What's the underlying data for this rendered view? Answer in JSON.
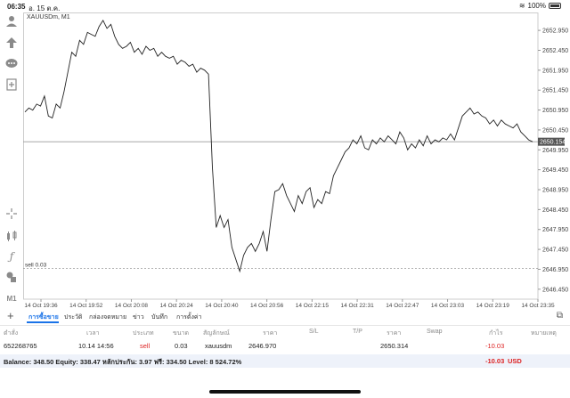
{
  "status_bar": {
    "time": "06:35",
    "date": "อ. 15 ต.ค.",
    "battery": "100%"
  },
  "toolbar_icons": [
    "person-icon",
    "up-arrow-icon",
    "chat-icon",
    "add-page-icon",
    "crosshair-icon",
    "candles-icon",
    "function-icon",
    "objects-icon",
    "timeframe-label"
  ],
  "timeframe": "M1",
  "chart": {
    "symbol_label": "XAUUSDm, M1",
    "current_price": "2650.154",
    "order_label": "sell 0.03",
    "price_ticks": [
      "2652.950",
      "2652.450",
      "2651.950",
      "2651.450",
      "2650.950",
      "2650.450",
      "2649.950",
      "2649.450",
      "2648.950",
      "2648.450",
      "2647.950",
      "2647.450",
      "2646.950",
      "2646.450"
    ],
    "time_ticks": [
      "14 Oct 19:36",
      "14 Oct 19:52",
      "14 Oct 20:08",
      "14 Oct 20:24",
      "14 Oct 20:40",
      "14 Oct 20:56",
      "14 Oct 22:15",
      "14 Oct 22:31",
      "14 Oct 22:47",
      "14 Oct 23:03",
      "14 Oct 23:19",
      "14 Oct 23:35"
    ]
  },
  "chart_data": {
    "type": "line",
    "title": "XAUUSDm, M1",
    "ylim": [
      2646.2,
      2653.4
    ],
    "current_price": 2650.154,
    "order_line": 2646.97,
    "values": [
      2650.9,
      2651.0,
      2650.95,
      2651.1,
      2651.05,
      2651.3,
      2650.8,
      2650.75,
      2651.1,
      2651.0,
      2651.4,
      2651.9,
      2652.4,
      2652.3,
      2652.7,
      2652.6,
      2652.9,
      2652.85,
      2652.8,
      2653.05,
      2653.2,
      2653.0,
      2653.1,
      2652.8,
      2652.6,
      2652.5,
      2652.55,
      2652.65,
      2652.4,
      2652.5,
      2652.35,
      2652.55,
      2652.45,
      2652.5,
      2652.3,
      2652.4,
      2652.3,
      2652.25,
      2652.3,
      2652.1,
      2652.2,
      2652.15,
      2652.05,
      2652.1,
      2651.9,
      2652.0,
      2651.95,
      2651.85,
      2649.5,
      2648.0,
      2648.3,
      2648.0,
      2648.2,
      2647.5,
      2647.2,
      2646.9,
      2647.3,
      2647.5,
      2647.6,
      2647.4,
      2647.6,
      2647.9,
      2647.4,
      2648.2,
      2648.9,
      2648.95,
      2649.1,
      2648.8,
      2648.6,
      2648.4,
      2648.8,
      2648.6,
      2648.9,
      2649.0,
      2648.5,
      2648.7,
      2648.6,
      2648.9,
      2648.85,
      2649.3,
      2649.5,
      2649.7,
      2649.9,
      2650.0,
      2650.2,
      2650.1,
      2650.3,
      2650.0,
      2649.95,
      2650.2,
      2650.1,
      2650.25,
      2650.15,
      2650.3,
      2650.2,
      2650.1,
      2650.4,
      2650.25,
      2649.95,
      2650.1,
      2650.0,
      2650.2,
      2650.05,
      2650.3,
      2650.1,
      2650.2,
      2650.15,
      2650.25,
      2650.2,
      2650.35,
      2650.2,
      2650.5,
      2650.8,
      2650.9,
      2651.0,
      2650.85,
      2650.9,
      2650.8,
      2650.75,
      2650.6,
      2650.7,
      2650.55,
      2650.7,
      2650.6,
      2650.55,
      2650.5,
      2650.6,
      2650.4,
      2650.3,
      2650.2,
      2650.154
    ]
  },
  "tabs": {
    "items": [
      "การซื้อขาย",
      "ประวัติ",
      "กล่องจดหมาย",
      "ข่าว",
      "บันทึก",
      "การตั้งค่า"
    ],
    "active_index": 0
  },
  "table": {
    "headers": [
      "ตำสั่ง",
      "เวลา",
      "ประเภท",
      "ขนาด",
      "สัญลักษณ์",
      "ราคา",
      "S/L",
      "T/P",
      "ราคา",
      "Swap",
      "กำไร",
      "หมายเหตุ"
    ],
    "rows": [
      [
        "652268765",
        "10.14 14:56",
        "sell",
        "0.03",
        "xauusdm",
        "2646.970",
        "",
        "",
        "2650.314",
        "",
        "-10.03",
        ""
      ]
    ]
  },
  "balance": {
    "text": "Balance: 348.50 Equity: 338.47 หลักประกัน: 3.97 ฟรี: 334.50 Level: 8 524.72%",
    "profit": "-10.03",
    "currency": "USD"
  },
  "colors": {
    "accent": "#1a73e8",
    "loss": "#dd2222",
    "line": "#222222",
    "grid": "#eeeeee"
  }
}
